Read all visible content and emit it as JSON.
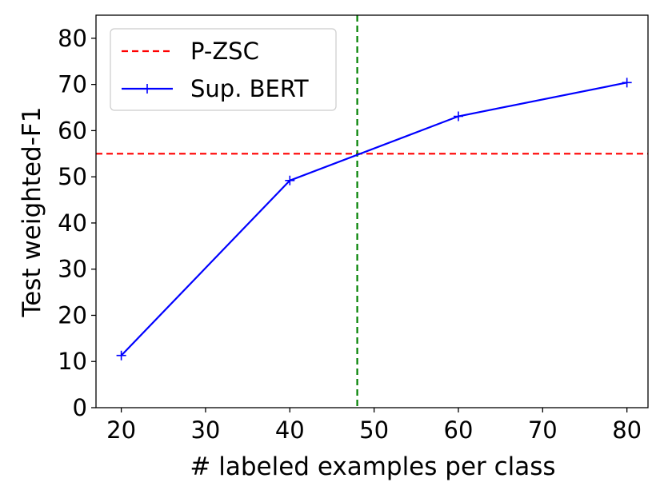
{
  "chart_data": {
    "type": "line",
    "title": "",
    "xlabel": "# labeled examples per class",
    "ylabel": "Test weighted-F1",
    "xlim": [
      17,
      82.5
    ],
    "ylim": [
      0,
      85
    ],
    "xticks": [
      20,
      30,
      40,
      50,
      60,
      70,
      80
    ],
    "yticks": [
      0,
      10,
      20,
      30,
      40,
      50,
      60,
      70,
      80
    ],
    "grid": false,
    "legend_position": "top-left",
    "series": [
      {
        "name": "Sup. BERT",
        "color": "#0000ff",
        "style": "solid",
        "marker": "plus",
        "x": [
          20,
          40,
          60,
          80
        ],
        "y": [
          11.3,
          49.2,
          63.1,
          70.4
        ]
      }
    ],
    "reference_lines": [
      {
        "name": "P-ZSC",
        "orientation": "horizontal",
        "value": 55,
        "color": "#ff0000",
        "style": "dashed"
      },
      {
        "orientation": "vertical",
        "value": 48,
        "color": "#008000",
        "style": "dashed"
      }
    ]
  }
}
